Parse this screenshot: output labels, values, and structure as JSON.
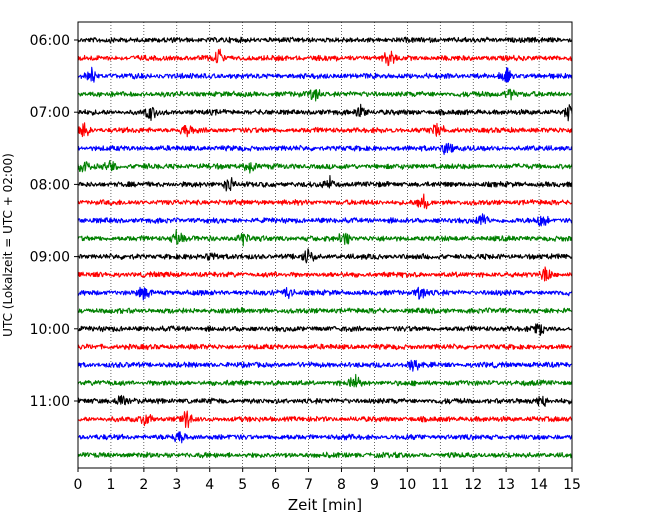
{
  "chart_data": {
    "type": "line",
    "title": "",
    "xlabel": "Zeit  [min]",
    "ylabel": "UTC (Lokalzeit = UTC + 02:00)",
    "xlim": [
      0,
      15
    ],
    "x_ticks": [
      "0",
      "1",
      "2",
      "3",
      "4",
      "5",
      "6",
      "7",
      "8",
      "9",
      "10",
      "11",
      "12",
      "13",
      "14",
      "15"
    ],
    "y_tick_labels": [
      "06:00",
      "07:00",
      "08:00",
      "09:00",
      "10:00",
      "11:00"
    ],
    "grid": "vertical dotted at each minute",
    "trace_colors": [
      "#000000",
      "#ff0000",
      "#0000ff",
      "#008000"
    ],
    "traces": [
      {
        "start": "06:00",
        "color": "#000000"
      },
      {
        "start": "06:15",
        "color": "#ff0000",
        "spikes": [
          4.25,
          9.45
        ]
      },
      {
        "start": "06:30",
        "color": "#0000ff",
        "spikes": [
          0.4,
          13.0
        ]
      },
      {
        "start": "06:45",
        "color": "#008000",
        "spikes": [
          7.2,
          13.1
        ]
      },
      {
        "start": "07:00",
        "color": "#000000",
        "spikes": [
          2.2,
          8.6,
          14.9
        ]
      },
      {
        "start": "07:15",
        "color": "#ff0000",
        "spikes": [
          0.2,
          3.3,
          10.9
        ]
      },
      {
        "start": "07:30",
        "color": "#0000ff",
        "spikes": [
          11.2
        ]
      },
      {
        "start": "07:45",
        "color": "#008000",
        "spikes": [
          0.2,
          1.0,
          5.2
        ]
      },
      {
        "start": "08:00",
        "color": "#000000",
        "spikes": [
          4.6,
          7.6
        ]
      },
      {
        "start": "08:15",
        "color": "#ff0000",
        "spikes": [
          10.5
        ]
      },
      {
        "start": "08:30",
        "color": "#0000ff",
        "spikes": [
          12.3,
          14.1
        ]
      },
      {
        "start": "08:45",
        "color": "#008000",
        "spikes": [
          3.0,
          5.0,
          8.1
        ]
      },
      {
        "start": "09:00",
        "color": "#000000",
        "spikes": [
          4.1,
          7.0
        ]
      },
      {
        "start": "09:15",
        "color": "#ff0000",
        "spikes": [
          14.2
        ]
      },
      {
        "start": "09:30",
        "color": "#0000ff",
        "spikes": [
          2.0,
          6.4,
          10.4
        ]
      },
      {
        "start": "09:45",
        "color": "#008000"
      },
      {
        "start": "10:00",
        "color": "#000000",
        "spikes": [
          14.0
        ]
      },
      {
        "start": "10:15",
        "color": "#ff0000"
      },
      {
        "start": "10:30",
        "color": "#0000ff",
        "spikes": [
          10.2
        ]
      },
      {
        "start": "10:45",
        "color": "#008000",
        "spikes": [
          8.4
        ]
      },
      {
        "start": "11:00",
        "color": "#000000",
        "spikes": [
          1.3,
          14.1
        ]
      },
      {
        "start": "11:15",
        "color": "#ff0000",
        "spikes": [
          2.1,
          3.3
        ]
      },
      {
        "start": "11:30",
        "color": "#0000ff",
        "spikes": [
          3.1
        ]
      },
      {
        "start": "11:45",
        "color": "#008000"
      }
    ]
  }
}
